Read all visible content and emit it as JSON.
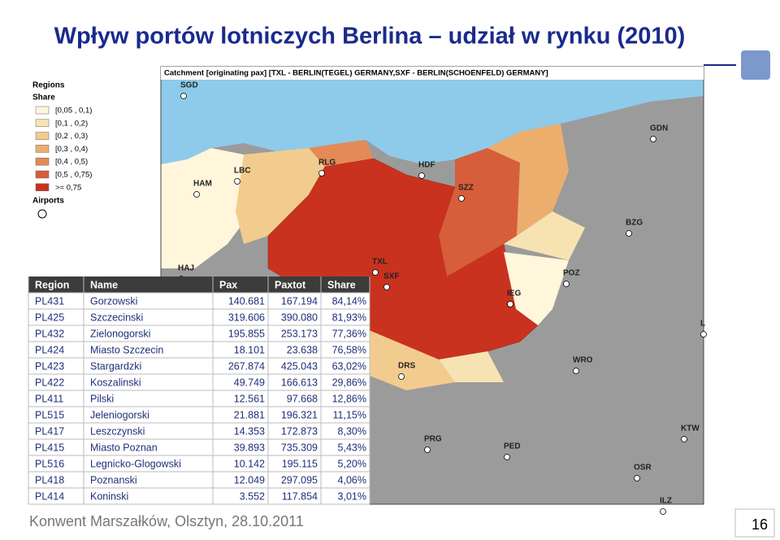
{
  "header": {
    "title": "Wpływ portów lotniczych Berlina – udział w rynku (2010)"
  },
  "map": {
    "caption": "Catchment [originating pax]  [TXL - BERLIN(TEGEL) GERMANY,SXF - BERLIN(SCHOENFELD) GERMANY]",
    "legend": {
      "title": "Regions",
      "subtitle": "Share",
      "airports_title": "Airports",
      "items": [
        {
          "label": "[0,05 , 0,1)",
          "color": "#fff6dc"
        },
        {
          "label": "[0,1 , 0,2)",
          "color": "#f7e3b2"
        },
        {
          "label": "[0,2 , 0,3)",
          "color": "#f2cc8e"
        },
        {
          "label": "[0,3 , 0,4)",
          "color": "#ecae6d"
        },
        {
          "label": "[0,4 , 0,5)",
          "color": "#e48a56"
        },
        {
          "label": "[0,5 , 0,75)",
          "color": "#d65e3b"
        },
        {
          "label": ">= 0,75",
          "color": "#c9321f"
        }
      ]
    },
    "airports": [
      "SGD",
      "GDN",
      "HAM",
      "LBC",
      "RLG",
      "HDF",
      "SZZ",
      "BZG",
      "HAJ",
      "TXL",
      "SXF",
      "POZ",
      "IEG",
      "L",
      "DRS",
      "WRO",
      "PRG",
      "PED",
      "KTW",
      "OSR",
      "ILZ"
    ]
  },
  "table": {
    "columns": [
      "Region",
      "Name",
      "Pax",
      "Paxtot",
      "Share"
    ],
    "rows": [
      [
        "PL431",
        "Gorzowski",
        "140.681",
        "167.194",
        "84,14%"
      ],
      [
        "PL425",
        "Szczecinski",
        "319.606",
        "390.080",
        "81,93%"
      ],
      [
        "PL432",
        "Zielonogorski",
        "195.855",
        "253.173",
        "77,36%"
      ],
      [
        "PL424",
        "Miasto Szczecin",
        "18.101",
        "23.638",
        "76,58%"
      ],
      [
        "PL423",
        "Stargardzki",
        "267.874",
        "425.043",
        "63,02%"
      ],
      [
        "PL422",
        "Koszalinski",
        "49.749",
        "166.613",
        "29,86%"
      ],
      [
        "PL411",
        "Pilski",
        "12.561",
        "97.668",
        "12,86%"
      ],
      [
        "PL515",
        "Jeleniogorski",
        "21.881",
        "196.321",
        "11,15%"
      ],
      [
        "PL417",
        "Leszczynski",
        "14.353",
        "172.873",
        "8,30%"
      ],
      [
        "PL415",
        "Miasto Poznan",
        "39.893",
        "735.309",
        "5,43%"
      ],
      [
        "PL516",
        "Legnicko-Glogowski",
        "10.142",
        "195.115",
        "5,20%"
      ],
      [
        "PL418",
        "Poznanski",
        "12.049",
        "297.095",
        "4,06%"
      ],
      [
        "PL414",
        "Koninski",
        "3.552",
        "117.854",
        "3,01%"
      ]
    ]
  },
  "footer": {
    "text": "Konwent Marszałków, Olsztyn, 28.10.2011",
    "page": "16"
  }
}
